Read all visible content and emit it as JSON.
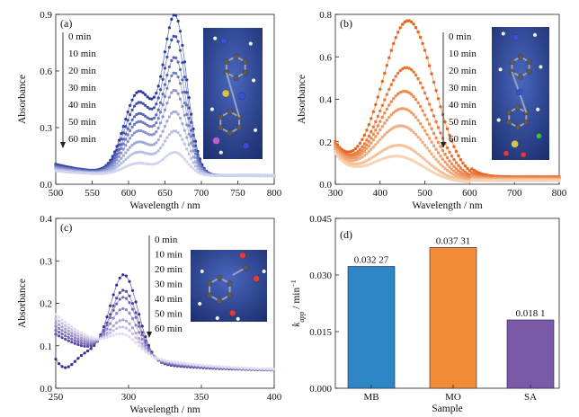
{
  "colors": {
    "mb": "#3949a8",
    "mo": "#ee7b36",
    "sa": "#5f3fa8",
    "bar_mb": "#2f86c6",
    "bar_mo": "#f28c36",
    "bar_sa": "#7a5aa8",
    "inset_bg": "#2b4a9a"
  },
  "chart_data": [
    {
      "type": "line",
      "panel": "(a)",
      "xlabel": "Wavelength / nm",
      "ylabel": "Absorbance",
      "xlim": [
        500,
        800
      ],
      "ylim": [
        0.0,
        0.9
      ],
      "xticks": [
        500,
        550,
        600,
        650,
        700,
        750,
        800
      ],
      "yticks": [
        0.0,
        0.3,
        0.6,
        0.9
      ],
      "ytick_labels": [
        "0.0",
        "0.3",
        "0.6",
        "0.9"
      ],
      "legend": [
        "0 min",
        "10 min",
        "20 min",
        "30 min",
        "40 min",
        "50 min",
        "60 min"
      ],
      "model": {
        "base": 0.05,
        "peaks": [
          [
            664,
            16,
            1.0
          ],
          [
            614,
            20,
            0.52
          ]
        ]
      },
      "series": [
        {
          "name": "0 min",
          "peak": 0.83
        },
        {
          "name": "10 min",
          "peak": 0.72
        },
        {
          "name": "20 min",
          "peak": 0.61
        },
        {
          "name": "30 min",
          "peak": 0.53
        },
        {
          "name": "40 min",
          "peak": 0.44
        },
        {
          "name": "50 min",
          "peak": 0.33
        },
        {
          "name": "60 min",
          "peak": 0.23
        },
        {
          "name": "",
          "peak": 0.12
        }
      ]
    },
    {
      "type": "line",
      "panel": "(b)",
      "xlabel": "Wavelength / nm",
      "ylabel": "Absorbance",
      "xlim": [
        300,
        800
      ],
      "ylim": [
        0.0,
        0.8
      ],
      "xticks": [
        300,
        400,
        500,
        600,
        700,
        800
      ],
      "yticks": [
        0.0,
        0.2,
        0.4,
        0.6,
        0.8
      ],
      "ytick_labels": [
        "0.0",
        "0.2",
        "0.4",
        "0.6",
        "0.8"
      ],
      "legend": [
        "0 min",
        "10 min",
        "20 min",
        "30 min",
        "40 min",
        "50 min",
        "60 min"
      ],
      "model": {
        "peaks": [
          [
            463,
            58,
            1.0
          ]
        ]
      },
      "series": [
        {
          "name": "0 min",
          "peak": 0.75
        },
        {
          "name": "10 min",
          "peak": 0.53
        },
        {
          "name": "20 min",
          "peak": 0.42
        },
        {
          "name": "30 min",
          "peak": 0.34
        },
        {
          "name": "40 min",
          "peak": 0.26
        },
        {
          "name": "50 min",
          "peak": 0.17
        },
        {
          "name": "60 min",
          "peak": 0.12
        }
      ]
    },
    {
      "type": "line",
      "panel": "(c)",
      "xlabel": "Wavelength / nm",
      "ylabel": "Absorbance",
      "xlim": [
        250,
        400
      ],
      "ylim": [
        0.0,
        0.4
      ],
      "xticks": [
        250,
        300,
        350,
        400
      ],
      "yticks": [
        0.0,
        0.1,
        0.2,
        0.3,
        0.4
      ],
      "ytick_labels": [
        "0.0",
        "0.1",
        "0.2",
        "0.3",
        "0.4"
      ],
      "legend": [
        "0 min",
        "10 min",
        "20 min",
        "30 min",
        "40 min",
        "50 min",
        "60 min"
      ],
      "model": {
        "peaks": [
          [
            297,
            10,
            1.0
          ]
        ]
      },
      "series": [
        {
          "name": "0 min",
          "peak": 0.32
        },
        {
          "name": "10 min",
          "peak": 0.28
        },
        {
          "name": "20 min",
          "peak": 0.26
        },
        {
          "name": "30 min",
          "peak": 0.23
        },
        {
          "name": "40 min",
          "peak": 0.2
        },
        {
          "name": "50 min",
          "peak": 0.18
        },
        {
          "name": "60 min",
          "peak": 0.16
        }
      ]
    },
    {
      "type": "bar",
      "panel": "(d)",
      "xlabel": "Sample",
      "ylabel": "k_app / min⁻¹",
      "ylim": [
        0.0,
        0.045
      ],
      "yticks": [
        0.0,
        0.015,
        0.03,
        0.045
      ],
      "ytick_labels": [
        "0.000",
        "0.015",
        "0.030",
        "0.045"
      ],
      "categories": [
        "MB",
        "MO",
        "SA"
      ],
      "values": [
        0.03227,
        0.03731,
        0.0181
      ],
      "value_labels": [
        "0.032 27",
        "0.037 31",
        "0.018 1"
      ]
    }
  ]
}
